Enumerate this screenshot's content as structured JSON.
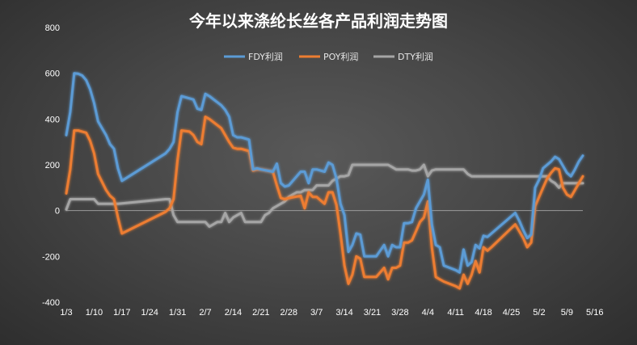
{
  "chart_data": {
    "type": "line",
    "title": "今年以来涤纶长丝各产品利润走势图",
    "xlabel": "",
    "ylabel": "",
    "ylim": [
      -400,
      800
    ],
    "yticks": [
      -400,
      -200,
      0,
      200,
      400,
      600,
      800
    ],
    "xticks": [
      "1/3",
      "1/10",
      "1/17",
      "1/24",
      "1/31",
      "2/7",
      "2/14",
      "2/21",
      "2/28",
      "3/7",
      "3/14",
      "3/21",
      "3/28",
      "4/4",
      "4/11",
      "4/18",
      "4/25",
      "5/2",
      "5/9",
      "5/16"
    ],
    "x_unit": "day index from 1/3",
    "grid": false,
    "legend_position": "top-center",
    "series": [
      {
        "name": "FDY利润",
        "color": "#5b9bd5",
        "points": [
          [
            0,
            330
          ],
          [
            1,
            430
          ],
          [
            2,
            600
          ],
          [
            3,
            598
          ],
          [
            4,
            590
          ],
          [
            5,
            570
          ],
          [
            6,
            530
          ],
          [
            7,
            470
          ],
          [
            8,
            390
          ],
          [
            10,
            330
          ],
          [
            11,
            290
          ],
          [
            12,
            270
          ],
          [
            13,
            185
          ],
          [
            14,
            130
          ],
          [
            25,
            250
          ],
          [
            26,
            270
          ],
          [
            27,
            300
          ],
          [
            28,
            430
          ],
          [
            29,
            500
          ],
          [
            31,
            490
          ],
          [
            32,
            485
          ],
          [
            33,
            445
          ],
          [
            34,
            440
          ],
          [
            35,
            510
          ],
          [
            36,
            500
          ],
          [
            39,
            460
          ],
          [
            40,
            440
          ],
          [
            41,
            410
          ],
          [
            42,
            330
          ],
          [
            43,
            320
          ],
          [
            44,
            320
          ],
          [
            46,
            310
          ],
          [
            47,
            180
          ],
          [
            48,
            185
          ],
          [
            49,
            180
          ],
          [
            52,
            170
          ],
          [
            53,
            205
          ],
          [
            54,
            120
          ],
          [
            55,
            105
          ],
          [
            56,
            110
          ],
          [
            59,
            170
          ],
          [
            60,
            170
          ],
          [
            61,
            120
          ],
          [
            62,
            180
          ],
          [
            63,
            180
          ],
          [
            65,
            170
          ],
          [
            66,
            210
          ],
          [
            67,
            200
          ],
          [
            68,
            140
          ],
          [
            69,
            30
          ],
          [
            70,
            -20
          ],
          [
            71,
            -180
          ],
          [
            72,
            -150
          ],
          [
            73,
            -100
          ],
          [
            74,
            -105
          ],
          [
            75,
            -200
          ],
          [
            78,
            -200
          ],
          [
            80,
            -150
          ],
          [
            81,
            -200
          ],
          [
            82,
            -150
          ],
          [
            83,
            -160
          ],
          [
            84,
            -160
          ],
          [
            85,
            -55
          ],
          [
            86,
            -55
          ],
          [
            87,
            -50
          ],
          [
            88,
            10
          ],
          [
            89,
            40
          ],
          [
            90,
            70
          ],
          [
            91,
            135
          ],
          [
            92,
            -60
          ],
          [
            93,
            -150
          ],
          [
            94,
            -160
          ],
          [
            95,
            -240
          ],
          [
            98,
            -260
          ],
          [
            99,
            -270
          ],
          [
            100,
            -170
          ],
          [
            101,
            -240
          ],
          [
            102,
            -225
          ],
          [
            103,
            -150
          ],
          [
            104,
            -165
          ],
          [
            105,
            -110
          ],
          [
            106,
            -115
          ],
          [
            107,
            -100
          ],
          [
            113,
            -10
          ],
          [
            114,
            -45
          ],
          [
            115,
            -85
          ],
          [
            116,
            -120
          ],
          [
            117,
            -105
          ],
          [
            118,
            100
          ],
          [
            119,
            135
          ],
          [
            120,
            185
          ],
          [
            121,
            200
          ],
          [
            122,
            215
          ],
          [
            123,
            235
          ],
          [
            124,
            225
          ],
          [
            125,
            195
          ],
          [
            126,
            165
          ],
          [
            127,
            150
          ],
          [
            128,
            180
          ],
          [
            129,
            215
          ],
          [
            130,
            240
          ]
        ]
      },
      {
        "name": "POY利润",
        "color": "#ed7d31",
        "points": [
          [
            0,
            75
          ],
          [
            1,
            180
          ],
          [
            2,
            350
          ],
          [
            3,
            350
          ],
          [
            4,
            345
          ],
          [
            5,
            340
          ],
          [
            6,
            305
          ],
          [
            7,
            250
          ],
          [
            8,
            160
          ],
          [
            10,
            90
          ],
          [
            11,
            65
          ],
          [
            12,
            50
          ],
          [
            13,
            -30
          ],
          [
            14,
            -100
          ],
          [
            25,
            -5
          ],
          [
            26,
            10
          ],
          [
            27,
            50
          ],
          [
            28,
            220
          ],
          [
            29,
            350
          ],
          [
            31,
            345
          ],
          [
            32,
            330
          ],
          [
            33,
            300
          ],
          [
            34,
            290
          ],
          [
            35,
            410
          ],
          [
            36,
            400
          ],
          [
            39,
            360
          ],
          [
            40,
            330
          ],
          [
            41,
            300
          ],
          [
            42,
            275
          ],
          [
            43,
            270
          ],
          [
            44,
            270
          ],
          [
            46,
            260
          ],
          [
            47,
            175
          ],
          [
            48,
            180
          ],
          [
            49,
            180
          ],
          [
            52,
            170
          ],
          [
            53,
            110
          ],
          [
            54,
            55
          ],
          [
            55,
            50
          ],
          [
            56,
            55
          ],
          [
            59,
            65
          ],
          [
            60,
            10
          ],
          [
            61,
            80
          ],
          [
            62,
            60
          ],
          [
            63,
            60
          ],
          [
            65,
            30
          ],
          [
            66,
            80
          ],
          [
            67,
            80
          ],
          [
            68,
            25
          ],
          [
            69,
            -100
          ],
          [
            70,
            -240
          ],
          [
            71,
            -320
          ],
          [
            72,
            -280
          ],
          [
            73,
            -200
          ],
          [
            74,
            -210
          ],
          [
            75,
            -290
          ],
          [
            78,
            -290
          ],
          [
            80,
            -250
          ],
          [
            81,
            -300
          ],
          [
            82,
            -250
          ],
          [
            83,
            -250
          ],
          [
            84,
            -240
          ],
          [
            85,
            -140
          ],
          [
            86,
            -140
          ],
          [
            87,
            -130
          ],
          [
            88,
            -90
          ],
          [
            89,
            -50
          ],
          [
            90,
            -30
          ],
          [
            91,
            40
          ],
          [
            92,
            -160
          ],
          [
            93,
            -290
          ],
          [
            94,
            -300
          ],
          [
            95,
            -310
          ],
          [
            98,
            -330
          ],
          [
            99,
            -340
          ],
          [
            100,
            -280
          ],
          [
            101,
            -320
          ],
          [
            102,
            -280
          ],
          [
            103,
            -220
          ],
          [
            104,
            -270
          ],
          [
            105,
            -160
          ],
          [
            106,
            -175
          ],
          [
            107,
            -160
          ],
          [
            113,
            -60
          ],
          [
            114,
            -90
          ],
          [
            115,
            -120
          ],
          [
            116,
            -160
          ],
          [
            117,
            -140
          ],
          [
            118,
            20
          ],
          [
            119,
            60
          ],
          [
            120,
            100
          ],
          [
            121,
            140
          ],
          [
            122,
            165
          ],
          [
            123,
            185
          ],
          [
            124,
            180
          ],
          [
            125,
            100
          ],
          [
            126,
            70
          ],
          [
            127,
            60
          ],
          [
            128,
            90
          ],
          [
            129,
            120
          ],
          [
            130,
            150
          ]
        ]
      },
      {
        "name": "DTY利润",
        "color": "#a5a5a5",
        "points": [
          [
            0,
            5
          ],
          [
            1,
            50
          ],
          [
            7,
            50
          ],
          [
            8,
            30
          ],
          [
            13,
            30
          ],
          [
            25,
            50
          ],
          [
            26,
            50
          ],
          [
            27,
            -20
          ],
          [
            28,
            -50
          ],
          [
            35,
            -50
          ],
          [
            36,
            -70
          ],
          [
            37,
            -60
          ],
          [
            38,
            -50
          ],
          [
            39,
            -50
          ],
          [
            40,
            -10
          ],
          [
            41,
            -50
          ],
          [
            42,
            -30
          ],
          [
            43,
            -20
          ],
          [
            44,
            -10
          ],
          [
            45,
            -50
          ],
          [
            49,
            -50
          ],
          [
            50,
            -20
          ],
          [
            51,
            -10
          ],
          [
            52,
            10
          ],
          [
            53,
            20
          ],
          [
            55,
            40
          ],
          [
            56,
            60
          ],
          [
            57,
            70
          ],
          [
            58,
            80
          ],
          [
            59,
            80
          ],
          [
            60,
            90
          ],
          [
            62,
            90
          ],
          [
            63,
            110
          ],
          [
            66,
            110
          ],
          [
            67,
            130
          ],
          [
            68,
            140
          ],
          [
            69,
            150
          ],
          [
            70,
            150
          ],
          [
            71,
            155
          ],
          [
            72,
            200
          ],
          [
            81,
            200
          ],
          [
            82,
            190
          ],
          [
            83,
            180
          ],
          [
            86,
            180
          ],
          [
            87,
            175
          ],
          [
            88,
            175
          ],
          [
            89,
            180
          ],
          [
            90,
            200
          ],
          [
            91,
            150
          ],
          [
            92,
            175
          ],
          [
            93,
            180
          ],
          [
            100,
            180
          ],
          [
            101,
            160
          ],
          [
            102,
            150
          ],
          [
            121,
            150
          ],
          [
            122,
            130
          ],
          [
            123,
            120
          ],
          [
            124,
            100
          ],
          [
            125,
            120
          ],
          [
            130,
            120
          ]
        ]
      }
    ]
  }
}
